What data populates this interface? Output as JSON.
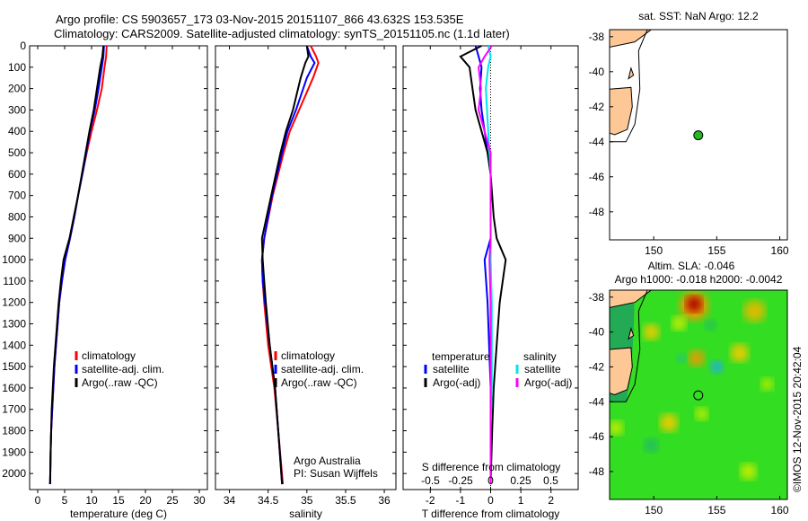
{
  "header": {
    "line1": "Argo profile: CS 5903657_173 03-Nov-2015 20151107_866 43.632S 153.535E",
    "line2": "Climatology: CARS2009. Satellite-adjusted climatology: synTS_20151105.nc (1.1d later)"
  },
  "colors": {
    "clim": "#ff0000",
    "sat": "#0000ff",
    "argo": "#000000",
    "sat_s": "#00e5ee",
    "argo_s": "#ff00ff",
    "land": "#fdc896",
    "float": "#22bb22"
  },
  "chart_data": [
    {
      "type": "line",
      "name": "temperature",
      "xlabel": "temperature (deg C)",
      "xlim": [
        -1.5,
        31.5
      ],
      "xticks": [
        "0",
        "5",
        "10",
        "15",
        "20",
        "25",
        "30"
      ],
      "xtickvals": [
        0,
        5,
        10,
        15,
        20,
        25,
        30
      ],
      "ylim": [
        0,
        2050
      ],
      "yticks": [
        "0",
        "100",
        "200",
        "300",
        "400",
        "500",
        "600",
        "700",
        "800",
        "900",
        "1000",
        "1100",
        "1200",
        "1300",
        "1400",
        "1500",
        "1600",
        "1700",
        "1800",
        "1900",
        "2000"
      ],
      "legend": [
        "climatology",
        "satellite-adj. clim.",
        "Argo(..raw -QC)"
      ],
      "depth": [
        0,
        50,
        100,
        200,
        300,
        400,
        500,
        600,
        700,
        800,
        900,
        1000,
        1100,
        1200,
        1300,
        1400,
        1500,
        1600,
        1700,
        1800,
        1900,
        2050
      ],
      "series": [
        {
          "name": "climatology",
          "values": [
            12.8,
            12.7,
            12.4,
            11.9,
            11.0,
            10.0,
            9.1,
            8.3,
            7.5,
            6.8,
            6.0,
            5.1,
            4.5,
            4.0,
            3.7,
            3.4,
            3.1,
            2.9,
            2.7,
            2.5,
            2.4,
            2.3
          ]
        },
        {
          "name": "satellite-adj. clim.",
          "values": [
            12.3,
            12.2,
            11.9,
            11.3,
            10.6,
            9.7,
            9.0,
            8.3,
            7.5,
            6.8,
            6.0,
            5.1,
            4.5,
            4.0,
            3.7,
            3.4,
            3.1,
            2.9,
            2.7,
            2.5,
            2.4,
            2.3
          ]
        },
        {
          "name": "Argo",
          "values": [
            12.2,
            12.0,
            11.6,
            11.0,
            10.4,
            9.6,
            8.9,
            8.2,
            7.5,
            6.7,
            5.9,
            4.8,
            4.3,
            3.9,
            3.6,
            3.3,
            3.0,
            2.8,
            2.6,
            2.5,
            2.4,
            2.3
          ]
        }
      ]
    },
    {
      "type": "line",
      "name": "salinity",
      "xlabel": "salinity",
      "xlim": [
        33.82,
        36.15
      ],
      "xticks": [
        "34",
        "34.5",
        "35",
        "35.5",
        "36"
      ],
      "xtickvals": [
        34,
        34.5,
        35,
        35.5,
        36
      ],
      "legend": [
        "climatology",
        "satellite-adj. clim.",
        "Argo(..raw -QC)"
      ],
      "annotation": [
        "Argo Australia",
        "PI: Susan Wijffels"
      ],
      "depth": [
        0,
        50,
        80,
        150,
        300,
        400,
        500,
        700,
        900,
        1000,
        1100,
        1200,
        1400,
        1600,
        1800,
        2050
      ],
      "series": [
        {
          "name": "climatology",
          "values": [
            35.05,
            35.12,
            35.15,
            35.08,
            34.9,
            34.78,
            34.7,
            34.56,
            34.45,
            34.42,
            34.43,
            34.45,
            34.5,
            34.58,
            34.63,
            34.69
          ]
        },
        {
          "name": "satellite-adj. clim.",
          "values": [
            35.0,
            35.05,
            35.1,
            35.0,
            34.86,
            34.75,
            34.68,
            34.55,
            34.45,
            34.42,
            34.43,
            34.46,
            34.52,
            34.59,
            34.63,
            34.68
          ]
        },
        {
          "name": "Argo",
          "values": [
            35.0,
            35.02,
            34.98,
            34.92,
            34.82,
            34.73,
            34.66,
            34.54,
            34.42,
            34.43,
            34.45,
            34.47,
            34.52,
            34.59,
            34.63,
            34.68
          ]
        }
      ]
    },
    {
      "type": "line",
      "name": "difference",
      "xlabel": "T difference from climatology",
      "x2label": "S difference from climatology",
      "xlim": [
        -2.9,
        2.9
      ],
      "xticks": [
        "-2",
        "-1",
        "0",
        "1",
        "2"
      ],
      "xtickvals": [
        -2,
        -1,
        0,
        1,
        2
      ],
      "x2ticks": [
        "-0.5",
        "-0.25",
        "0",
        "0.25",
        "0.5"
      ],
      "x2tickvals": [
        -0.5,
        -0.25,
        0,
        0.25,
        0.5
      ],
      "legend": {
        "temperature_title": "temperature",
        "salinity_title": "salinity",
        "items": [
          "satellite",
          "Argo(-adj)",
          "satellite",
          "Argo(-adj)"
        ]
      },
      "depth": [
        0,
        50,
        100,
        200,
        300,
        400,
        500,
        600,
        800,
        900,
        1000,
        1200,
        1400,
        1600,
        1800,
        2050
      ],
      "series": [
        {
          "name": "T satellite",
          "values": [
            -0.5,
            -0.4,
            -0.3,
            -0.35,
            -0.3,
            -0.2,
            -0.1,
            0,
            0,
            0,
            -0.2,
            -0.1,
            -0.05,
            0,
            0,
            0
          ]
        },
        {
          "name": "T Argo(-adj)",
          "values": [
            -0.3,
            -1.0,
            -0.7,
            -0.6,
            -0.5,
            -0.3,
            -0.1,
            0,
            0.1,
            0.2,
            0.5,
            0.3,
            0.2,
            0.1,
            0.05,
            0
          ]
        },
        {
          "name": "S satellite",
          "values": [
            -0.02,
            0,
            -0.02,
            -0.04,
            -0.03,
            -0.02,
            -0.01,
            0,
            0,
            0,
            0,
            0.01,
            0.01,
            0.01,
            0.0,
            0
          ]
        },
        {
          "name": "S Argo(-adj)",
          "values": [
            0.01,
            -0.05,
            -0.1,
            -0.08,
            -0.1,
            -0.05,
            0,
            0,
            0,
            0,
            -0.01,
            0,
            0,
            0,
            0,
            0
          ]
        }
      ]
    }
  ],
  "map1": {
    "title": "sat. SST: NaN Argo: 12.2",
    "xticks": [
      "150",
      "155",
      "160"
    ],
    "yticks": [
      "-38",
      "-40",
      "-42",
      "-44",
      "-46",
      "-48"
    ],
    "float_lon": 153.535,
    "float_lat": -43.632
  },
  "map2": {
    "title1": "Altim. SLA: -0.046",
    "title2": "Argo h1000: -0.018 h2000: -0.0042",
    "xticks": [
      "150",
      "155",
      "160"
    ],
    "yticks": [
      "-38",
      "-40",
      "-42",
      "-44",
      "-46",
      "-48"
    ],
    "credit": "©IMOS 12-Nov-2015 20:42:04"
  }
}
